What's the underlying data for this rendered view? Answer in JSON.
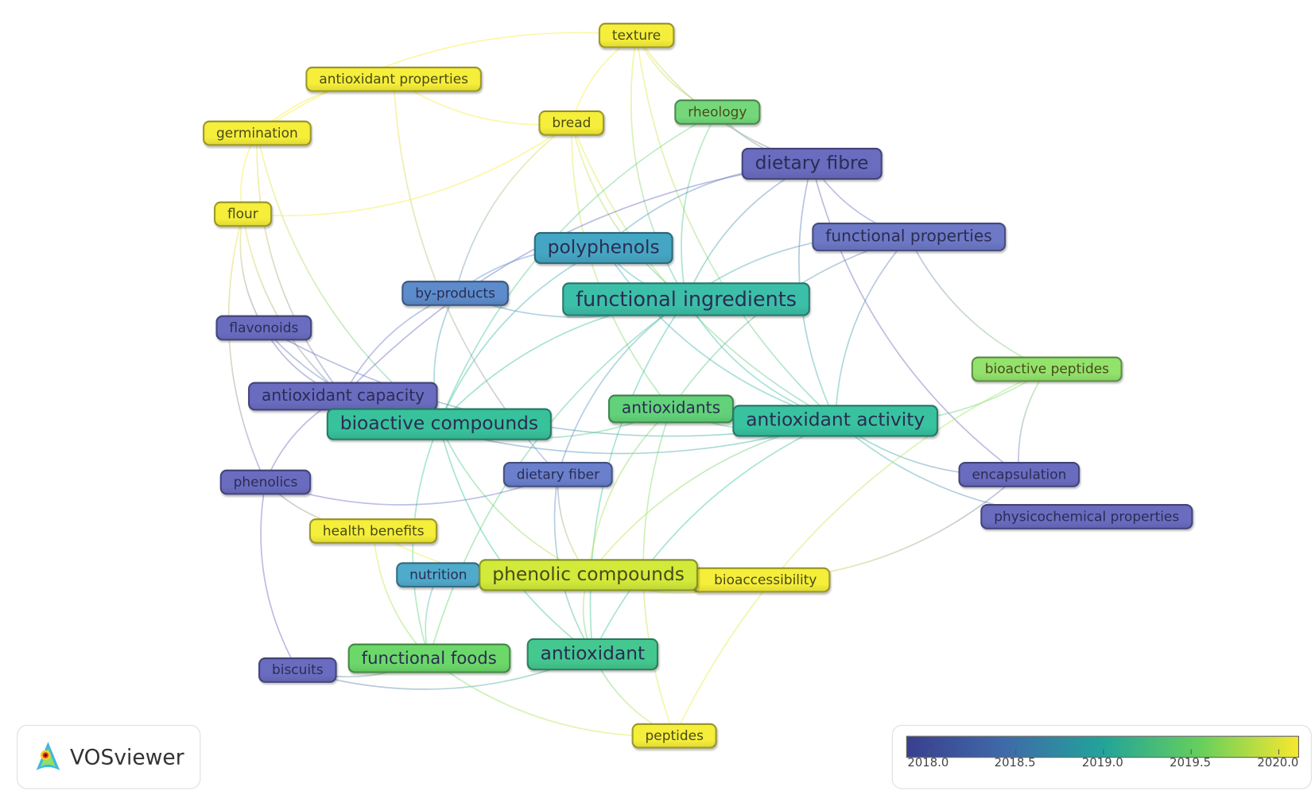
{
  "nodes": [
    {
      "label": "texture",
      "color": "#f5ee3a"
    },
    {
      "label": "antioxidant properties",
      "color": "#f5ee3a"
    },
    {
      "label": "germination",
      "color": "#f5ee3a"
    },
    {
      "label": "flour",
      "color": "#f5ee3a"
    },
    {
      "label": "bread",
      "color": "#f5ee3a"
    },
    {
      "label": "rheology",
      "color": "#74d87a"
    },
    {
      "label": "dietary fibre",
      "color": "#6a6cc0"
    },
    {
      "label": "functional properties",
      "color": "#6d78c6"
    },
    {
      "label": "polyphenols",
      "color": "#45a6c4"
    },
    {
      "label": "by-products",
      "color": "#5d8ccc"
    },
    {
      "label": "functional ingredients",
      "color": "#3cbfa8"
    },
    {
      "label": "flavonoids",
      "color": "#6a6cc0"
    },
    {
      "label": "antioxidant capacity",
      "color": "#6a6cc0"
    },
    {
      "label": "bioactive compounds",
      "color": "#38c29c"
    },
    {
      "label": "antioxidants",
      "color": "#62d27a"
    },
    {
      "label": "antioxidant activity",
      "color": "#38c2a0"
    },
    {
      "label": "bioactive peptides",
      "color": "#92e26c"
    },
    {
      "label": "dietary fiber",
      "color": "#6a80cc"
    },
    {
      "label": "encapsulation",
      "color": "#6a6cc0"
    },
    {
      "label": "physicochemical properties",
      "color": "#6a6cc0"
    },
    {
      "label": "phenolics",
      "color": "#6a6cc0"
    },
    {
      "label": "health benefits",
      "color": "#f5ee3a"
    },
    {
      "label": "nutrition",
      "color": "#50aacb"
    },
    {
      "label": "phenolic compounds",
      "color": "#d2ea3a"
    },
    {
      "label": "bioaccessibility",
      "color": "#f5ee3a"
    },
    {
      "label": "biscuits",
      "color": "#6a6cc0"
    },
    {
      "label": "functional foods",
      "color": "#6cd86a"
    },
    {
      "label": "antioxidant",
      "color": "#44c890"
    },
    {
      "label": "peptides",
      "color": "#f5ee3a"
    }
  ],
  "links": [
    [
      "texture",
      "bread"
    ],
    [
      "texture",
      "rheology"
    ],
    [
      "texture",
      "dietary fibre"
    ],
    [
      "texture",
      "functional ingredients"
    ],
    [
      "texture",
      "germination"
    ],
    [
      "texture",
      "antioxidant activity"
    ],
    [
      "antioxidant properties",
      "bread"
    ],
    [
      "antioxidant properties",
      "germination"
    ],
    [
      "antioxidant properties",
      "dietary fiber"
    ],
    [
      "germination",
      "flour"
    ],
    [
      "germination",
      "antioxidant capacity"
    ],
    [
      "germination",
      "bioactive compounds"
    ],
    [
      "flour",
      "bread"
    ],
    [
      "flour",
      "flavonoids"
    ],
    [
      "flour",
      "phenolics"
    ],
    [
      "flour",
      "antioxidant capacity"
    ],
    [
      "bread",
      "functional ingredients"
    ],
    [
      "bread",
      "antioxidants"
    ],
    [
      "bread",
      "antioxidant activity"
    ],
    [
      "bread",
      "by-products"
    ],
    [
      "rheology",
      "dietary fibre"
    ],
    [
      "rheology",
      "functional ingredients"
    ],
    [
      "rheology",
      "bioactive compounds"
    ],
    [
      "dietary fibre",
      "functional properties"
    ],
    [
      "dietary fibre",
      "polyphenols"
    ],
    [
      "dietary fibre",
      "functional ingredients"
    ],
    [
      "dietary fibre",
      "antioxidant activity"
    ],
    [
      "dietary fibre",
      "antioxidant capacity"
    ],
    [
      "dietary fibre",
      "encapsulation"
    ],
    [
      "functional properties",
      "functional ingredients"
    ],
    [
      "functional properties",
      "antioxidant activity"
    ],
    [
      "functional properties",
      "bioactive peptides"
    ],
    [
      "functional properties",
      "antioxidants"
    ],
    [
      "polyphenols",
      "functional ingredients"
    ],
    [
      "polyphenols",
      "by-products"
    ],
    [
      "polyphenols",
      "bioactive compounds"
    ],
    [
      "polyphenols",
      "antioxidant activity"
    ],
    [
      "by-products",
      "antioxidant capacity"
    ],
    [
      "by-products",
      "functional ingredients"
    ],
    [
      "by-products",
      "bioactive compounds"
    ],
    [
      "functional ingredients",
      "bioactive compounds"
    ],
    [
      "functional ingredients",
      "antioxidant activity"
    ],
    [
      "functional ingredients",
      "dietary fiber"
    ],
    [
      "functional ingredients",
      "antioxidant"
    ],
    [
      "functional ingredients",
      "functional foods"
    ],
    [
      "flavonoids",
      "antioxidant capacity"
    ],
    [
      "flavonoids",
      "bioactive compounds"
    ],
    [
      "flavonoids",
      "antioxidant activity"
    ],
    [
      "antioxidant capacity",
      "bioactive compounds"
    ],
    [
      "antioxidant capacity",
      "phenolics"
    ],
    [
      "antioxidant capacity",
      "antioxidant activity"
    ],
    [
      "bioactive compounds",
      "antioxidants"
    ],
    [
      "bioactive compounds",
      "phenolic compounds"
    ],
    [
      "bioactive compounds",
      "functional foods"
    ],
    [
      "bioactive compounds",
      "antioxidant"
    ],
    [
      "antioxidants",
      "antioxidant activity"
    ],
    [
      "antioxidants",
      "phenolic compounds"
    ],
    [
      "antioxidants",
      "peptides"
    ],
    [
      "antioxidant activity",
      "encapsulation"
    ],
    [
      "antioxidant activity",
      "physicochemical properties"
    ],
    [
      "antioxidant activity",
      "phenolic compounds"
    ],
    [
      "antioxidant activity",
      "bioactive peptides"
    ],
    [
      "antioxidant activity",
      "antioxidant"
    ],
    [
      "bioactive peptides",
      "encapsulation"
    ],
    [
      "bioactive peptides",
      "peptides"
    ],
    [
      "dietary fiber",
      "phenolic compounds"
    ],
    [
      "dietary fiber",
      "antioxidant"
    ],
    [
      "phenolics",
      "biscuits"
    ],
    [
      "phenolics",
      "health benefits"
    ],
    [
      "phenolics",
      "dietary fiber"
    ],
    [
      "health benefits",
      "functional foods"
    ],
    [
      "health benefits",
      "phenolic compounds"
    ],
    [
      "nutrition",
      "functional foods"
    ],
    [
      "phenolic compounds",
      "bioaccessibility"
    ],
    [
      "phenolic compounds",
      "antioxidant"
    ],
    [
      "bioaccessibility",
      "encapsulation"
    ],
    [
      "biscuits",
      "functional foods"
    ],
    [
      "biscuits",
      "antioxidant"
    ],
    [
      "antioxidant",
      "peptides"
    ],
    [
      "functional foods",
      "peptides"
    ]
  ],
  "logo": {
    "text": "VOSviewer"
  },
  "legend": {
    "ticks": [
      "2018.0",
      "2018.5",
      "2019.0",
      "2019.5",
      "2020.0"
    ],
    "min": 2018.0,
    "max": 2020.0,
    "colors": [
      "#3a3f8f",
      "#3f6aa9",
      "#22a39a",
      "#66cf5c",
      "#f7e82e"
    ]
  }
}
